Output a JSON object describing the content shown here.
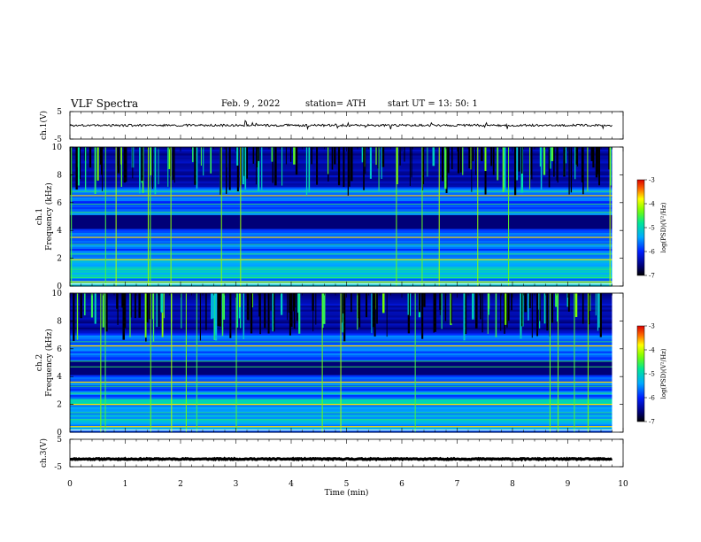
{
  "header": {
    "title": "VLF  Spectra",
    "date": "Feb. 9  , 2022",
    "station": "station= ATH",
    "start": "start  UT  =   13: 50: 1"
  },
  "chart_data": {
    "type": "heatmap",
    "xlabel": "Time (min)",
    "x_ticks": [
      "0",
      "1",
      "2",
      "3",
      "4",
      "5",
      "6",
      "7",
      "8",
      "9",
      "10"
    ],
    "xlim": [
      0,
      10
    ],
    "data_end_min": 9.8,
    "panels": [
      {
        "id": "ch1-waveform",
        "type": "line",
        "ylabel": "ch.1(V)",
        "ylim": [
          -5,
          5
        ],
        "y_ticks": [
          "5",
          "-5"
        ],
        "baseline": 0,
        "noise_amplitude": 0.4
      },
      {
        "id": "ch1-spectrogram",
        "type": "heatmap",
        "ylabel_top": "ch.1",
        "ylabel": "Frequency  (kHz)",
        "ylim": [
          0,
          10
        ],
        "y_ticks": [
          "0",
          "2",
          "4",
          "6",
          "8",
          "10"
        ],
        "colorbar": {
          "label": "log(PSD)(V²/Hz)",
          "range": [
            -7,
            -3
          ],
          "ticks": [
            "-3",
            "-4",
            "-5",
            "-6",
            "-7"
          ]
        },
        "seed": 7
      },
      {
        "id": "ch2-spectrogram",
        "type": "heatmap",
        "ylabel_top": "ch.2",
        "ylabel": "Frequency  (kHz)",
        "ylim": [
          0,
          10
        ],
        "y_ticks": [
          "0",
          "2",
          "4",
          "6",
          "8",
          "10"
        ],
        "colorbar": {
          "label": "log(PSD)(V²/Hz)",
          "range": [
            -7,
            -3
          ],
          "ticks": [
            "-3",
            "-4",
            "-5",
            "-6",
            "-7"
          ]
        },
        "seed": 19
      },
      {
        "id": "ch3-waveform",
        "type": "line",
        "ylabel": "ch.3(V)",
        "ylim": [
          -5,
          5
        ],
        "y_ticks": [
          "5",
          "-5"
        ],
        "baseline": -2.2,
        "noise_amplitude": 0.2
      }
    ]
  }
}
